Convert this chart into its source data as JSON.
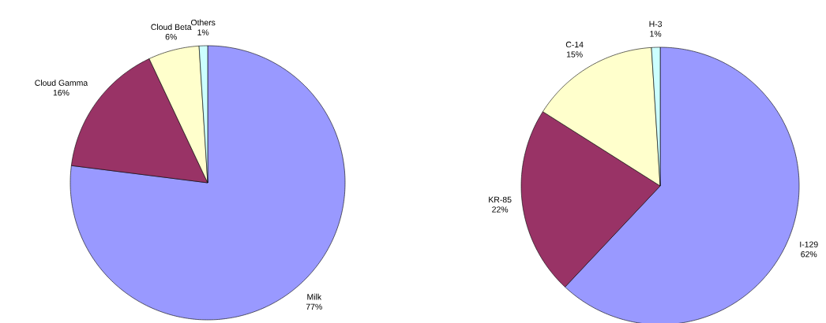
{
  "chart_data": [
    {
      "type": "pie",
      "categories": [
        "Milk",
        "Cloud Gamma",
        "Cloud Beta",
        "Others"
      ],
      "values": [
        77,
        16,
        6,
        1
      ],
      "colors": [
        "#9999ff",
        "#993366",
        "#ffffcc",
        "#ccffff"
      ],
      "value_labels": [
        "77%",
        "16%",
        "6%",
        "1%"
      ]
    },
    {
      "type": "pie",
      "categories": [
        "I-129",
        "KR-85",
        "C-14",
        "H-3"
      ],
      "values": [
        62,
        22,
        15,
        1
      ],
      "colors": [
        "#9999ff",
        "#993366",
        "#ffffcc",
        "#ccffff"
      ],
      "value_labels": [
        "62%",
        "22%",
        "15%",
        "1%"
      ]
    }
  ]
}
